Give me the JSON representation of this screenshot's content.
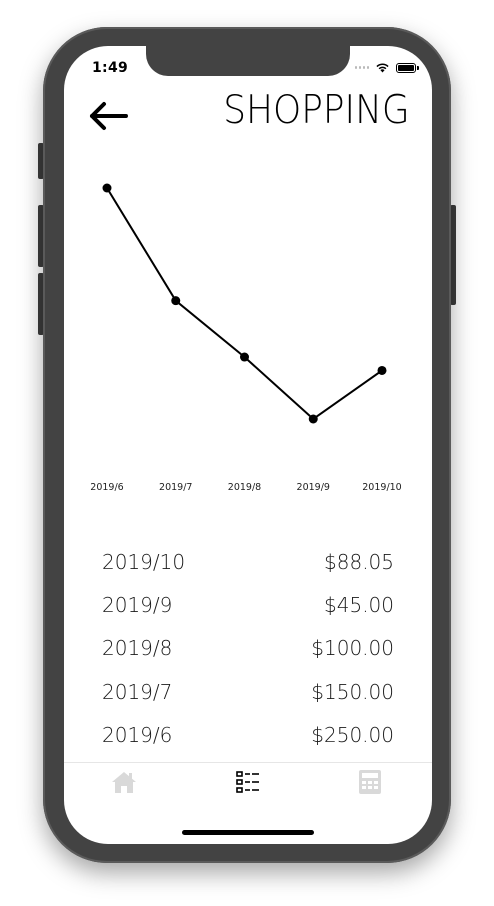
{
  "status_bar": {
    "time": "1:49"
  },
  "header": {
    "title": "SHOPPING"
  },
  "icons": {
    "back": "back-arrow-icon",
    "home": "home-icon",
    "list": "list-icon",
    "calculator": "calculator-icon",
    "wifi": "wifi-icon",
    "battery": "battery-icon"
  },
  "colors": {
    "line": "#000000",
    "tab_active": "#000000",
    "tab_inactive": "#d9d9d9",
    "frame": "#434343"
  },
  "chart_data": {
    "type": "line",
    "title": "",
    "xlabel": "",
    "ylabel": "",
    "categories": [
      "2019/6",
      "2019/7",
      "2019/8",
      "2019/9",
      "2019/10"
    ],
    "values": [
      250.0,
      150.0,
      100.0,
      45.0,
      88.05
    ],
    "ylim": [
      45,
      250
    ],
    "grid": false
  },
  "expenses": [
    {
      "month": "2019/10",
      "amount": "$88.05"
    },
    {
      "month": "2019/9",
      "amount": "$45.00"
    },
    {
      "month": "2019/8",
      "amount": "$100.00"
    },
    {
      "month": "2019/7",
      "amount": "$150.00"
    },
    {
      "month": "2019/6",
      "amount": "$250.00"
    }
  ],
  "tabs": [
    {
      "name": "Home",
      "active": false
    },
    {
      "name": "List",
      "active": true
    },
    {
      "name": "Calculator",
      "active": false
    }
  ]
}
